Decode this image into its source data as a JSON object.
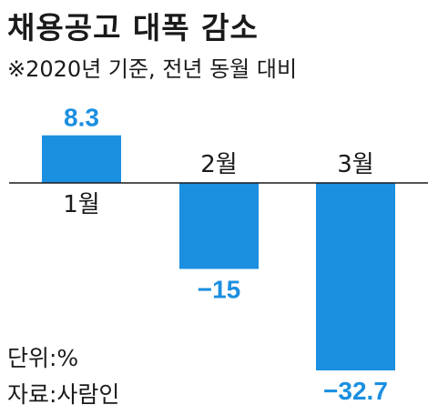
{
  "header": {
    "title": "채용공고 대폭 감소",
    "subtitle": "※2020년 기준, 전년 동월 대비"
  },
  "footer": {
    "unit": "단위:%",
    "source": "자료:사람인"
  },
  "colors": {
    "bar": "#1b8fe0",
    "value_label": "#1b8fe0",
    "baseline": "#1a1a1a"
  },
  "chart_data": {
    "type": "bar",
    "title": "채용공고 대폭 감소",
    "subtitle": "※2020년 기준, 전년 동월 대비",
    "categories": [
      "1월",
      "2월",
      "3월"
    ],
    "values": [
      8.3,
      -15,
      -32.7
    ],
    "value_labels": [
      "8.3",
      "−15",
      "−32.7"
    ],
    "xlabel": "",
    "ylabel": "",
    "ylim": [
      -32.7,
      8.3
    ],
    "grid": false,
    "legend": "none",
    "unit": "%"
  }
}
